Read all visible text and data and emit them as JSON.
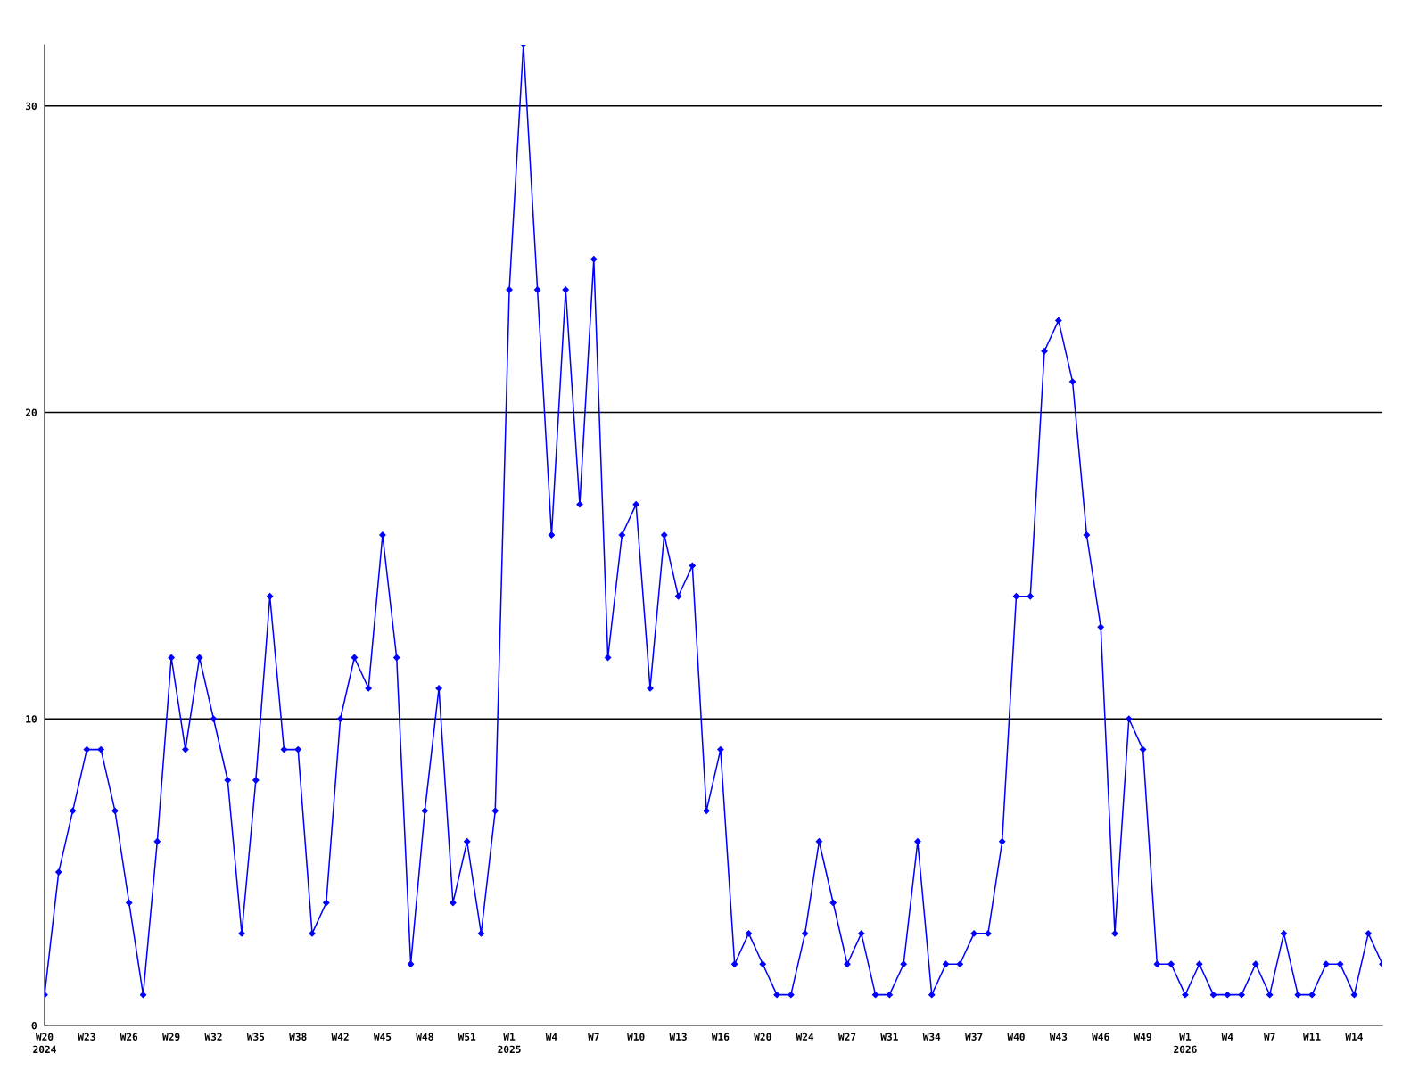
{
  "chart_data": {
    "type": "line",
    "categories": [
      "W20\n2024",
      null,
      null,
      "W23",
      null,
      null,
      "W26",
      null,
      null,
      "W29",
      null,
      null,
      "W32",
      null,
      null,
      "W35",
      null,
      null,
      "W38",
      null,
      null,
      "W42",
      null,
      null,
      "W45",
      null,
      null,
      "W48",
      null,
      null,
      "W51",
      null,
      null,
      "W1\n2025",
      null,
      null,
      "W4",
      null,
      null,
      "W7",
      null,
      null,
      "W10",
      null,
      null,
      "W13",
      null,
      null,
      "W16",
      null,
      null,
      "W20",
      null,
      null,
      "W24",
      null,
      null,
      "W27",
      null,
      null,
      "W31",
      null,
      null,
      "W34",
      null,
      null,
      "W37",
      null,
      null,
      "W40",
      null,
      null,
      "W43",
      null,
      null,
      "W46",
      null,
      null,
      "W49",
      null,
      null,
      "W1\n2026",
      null,
      null,
      "W4",
      null,
      null,
      "W7",
      null,
      null,
      "W11",
      null,
      null,
      "W14",
      null,
      null
    ],
    "series": [
      {
        "color": "#0000ff",
        "values": [
          1,
          5,
          7,
          9,
          9,
          7,
          4,
          1,
          6,
          12,
          9,
          12,
          10,
          8,
          3,
          8,
          14,
          9,
          9,
          3,
          4,
          10,
          12,
          11,
          16,
          12,
          2,
          7,
          11,
          4,
          6,
          3,
          7,
          24,
          32,
          24,
          16,
          24,
          17,
          25,
          12,
          16,
          17,
          11,
          16,
          14,
          15,
          7,
          9,
          2,
          3,
          2,
          1,
          1,
          3,
          6,
          4,
          2,
          3,
          1,
          1,
          2,
          6,
          1,
          2,
          2,
          3,
          3,
          6,
          14,
          14,
          22,
          23,
          21,
          16,
          13,
          3,
          10,
          9,
          2,
          2,
          1,
          2,
          1,
          1,
          1,
          2,
          1,
          3,
          1,
          1,
          2,
          2,
          1,
          3,
          2
        ]
      }
    ],
    "ylim": [
      0,
      32
    ],
    "yticks": [
      0,
      10,
      20,
      30
    ],
    "grid": "y",
    "marker": "diamond",
    "line_style": "solid",
    "legend": false
  }
}
